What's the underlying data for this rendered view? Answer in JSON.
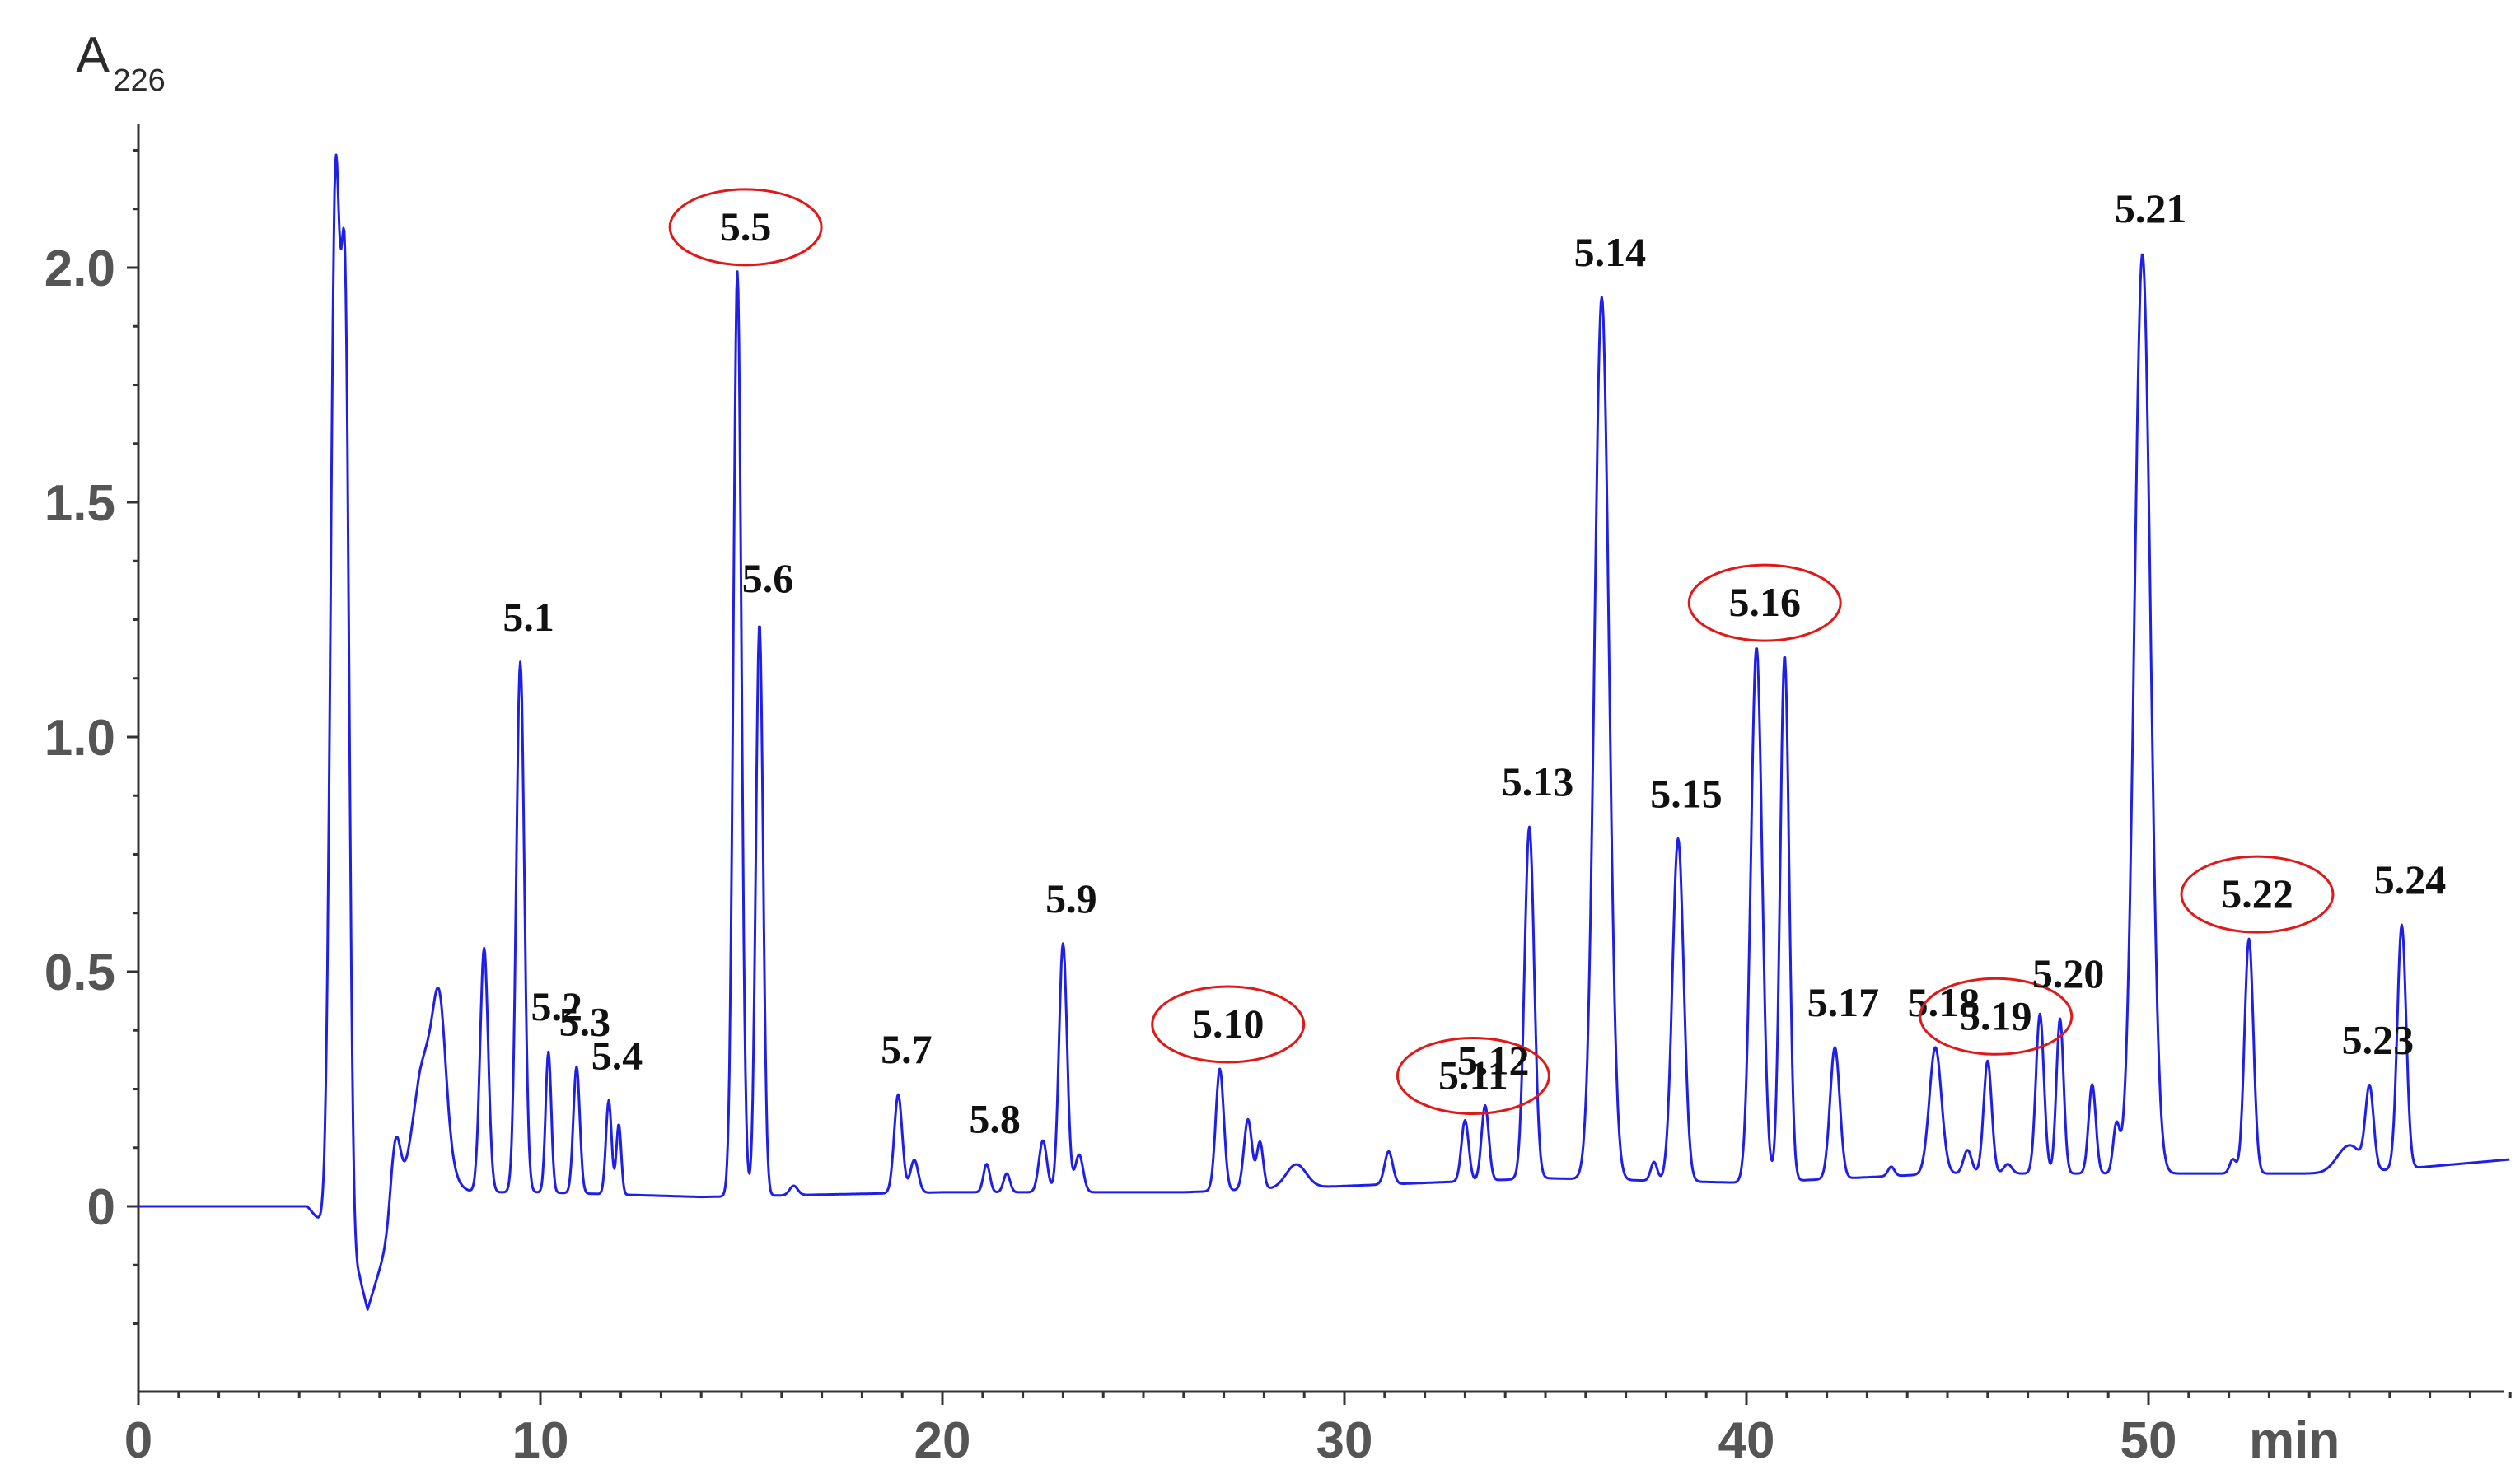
{
  "chart_data": {
    "type": "line",
    "ylabel": "A",
    "ylabel_subscript": "226",
    "xunit": "min",
    "xlim": [
      0,
      59
    ],
    "ylim": [
      -0.35,
      2.4
    ],
    "yticks": [
      0,
      0.5,
      1.0,
      1.5,
      2.0
    ],
    "ytick_labels": [
      "0",
      "0.5",
      "1.0",
      "1.5",
      "2.0"
    ],
    "xticks": [
      0,
      10,
      20,
      30,
      40,
      50
    ],
    "xtick_labels": [
      "0",
      "10",
      "20",
      "30",
      "40",
      "50"
    ],
    "baseline": {
      "points": [
        [
          0,
          0
        ],
        [
          4.2,
          0
        ],
        [
          4.5,
          -0.03
        ],
        [
          5.5,
          -0.15
        ],
        [
          5.7,
          -0.22
        ],
        [
          6.3,
          -0.05
        ],
        [
          7,
          0.05
        ],
        [
          8,
          0.03
        ],
        [
          10,
          0.03
        ],
        [
          14,
          0.02
        ],
        [
          17,
          0.025
        ],
        [
          20,
          0.03
        ],
        [
          26,
          0.03
        ],
        [
          32,
          0.05
        ],
        [
          35,
          0.06
        ],
        [
          40,
          0.05
        ],
        [
          45,
          0.07
        ],
        [
          50,
          0.07
        ],
        [
          55,
          0.07
        ],
        [
          59,
          0.1
        ]
      ]
    },
    "peaks": [
      {
        "x": 4.9,
        "y": 2.22,
        "w": 0.12
      },
      {
        "x": 5.15,
        "y": 1.85,
        "w": 0.1
      },
      {
        "x": 6.4,
        "y": 0.16,
        "w": 0.12
      },
      {
        "x": 7.2,
        "y": 0.28,
        "w": 0.35
      },
      {
        "x": 7.5,
        "y": 0.22,
        "w": 0.15
      },
      {
        "x": 8.6,
        "y": 0.52,
        "w": 0.1
      },
      {
        "x": 9.5,
        "y": 1.13,
        "w": 0.1,
        "label": "5.1"
      },
      {
        "x": 10.2,
        "y": 0.3,
        "w": 0.07,
        "label": "5.2"
      },
      {
        "x": 10.9,
        "y": 0.27,
        "w": 0.08,
        "label": "5.3"
      },
      {
        "x": 11.7,
        "y": 0.2,
        "w": 0.07,
        "label": "5.4"
      },
      {
        "x": 11.95,
        "y": 0.15,
        "w": 0.06
      },
      {
        "x": 14.9,
        "y": 1.97,
        "w": 0.1,
        "label": "5.5",
        "circled": true
      },
      {
        "x": 15.45,
        "y": 1.22,
        "w": 0.09,
        "label": "5.6"
      },
      {
        "x": 16.3,
        "y": 0.02,
        "w": 0.1
      },
      {
        "x": 18.9,
        "y": 0.21,
        "w": 0.1,
        "label": "5.7"
      },
      {
        "x": 19.3,
        "y": 0.07,
        "w": 0.1
      },
      {
        "x": 21.1,
        "y": 0.06,
        "w": 0.08,
        "label": "5.8"
      },
      {
        "x": 21.6,
        "y": 0.04,
        "w": 0.08
      },
      {
        "x": 22.5,
        "y": 0.11,
        "w": 0.1
      },
      {
        "x": 23.0,
        "y": 0.53,
        "w": 0.1,
        "label": "5.9"
      },
      {
        "x": 23.4,
        "y": 0.08,
        "w": 0.1
      },
      {
        "x": 26.9,
        "y": 0.26,
        "w": 0.1,
        "label": "5.10",
        "circled": true
      },
      {
        "x": 27.6,
        "y": 0.15,
        "w": 0.1
      },
      {
        "x": 27.9,
        "y": 0.1,
        "w": 0.08
      },
      {
        "x": 28.8,
        "y": 0.05,
        "w": 0.25
      },
      {
        "x": 31.1,
        "y": 0.07,
        "w": 0.1
      },
      {
        "x": 33.0,
        "y": 0.13,
        "w": 0.09,
        "label": "5.11",
        "circled": true
      },
      {
        "x": 33.5,
        "y": 0.16,
        "w": 0.09,
        "label": "5.12"
      },
      {
        "x": 34.6,
        "y": 0.75,
        "w": 0.12,
        "label": "5.13"
      },
      {
        "x": 36.4,
        "y": 1.88,
        "w": 0.18,
        "label": "5.14"
      },
      {
        "x": 37.7,
        "y": 0.04,
        "w": 0.08
      },
      {
        "x": 38.3,
        "y": 0.73,
        "w": 0.14,
        "label": "5.15"
      },
      {
        "x": 40.25,
        "y": 1.14,
        "w": 0.14,
        "label": "5.16",
        "circled": true
      },
      {
        "x": 40.95,
        "y": 1.12,
        "w": 0.11
      },
      {
        "x": 42.2,
        "y": 0.28,
        "w": 0.12,
        "label": "5.17"
      },
      {
        "x": 43.6,
        "y": 0.02,
        "w": 0.08
      },
      {
        "x": 44.7,
        "y": 0.27,
        "w": 0.15,
        "label": "5.18"
      },
      {
        "x": 45.5,
        "y": 0.05,
        "w": 0.1
      },
      {
        "x": 46.0,
        "y": 0.24,
        "w": 0.1,
        "label": "5.19",
        "circled": true
      },
      {
        "x": 46.5,
        "y": 0.02,
        "w": 0.1
      },
      {
        "x": 47.3,
        "y": 0.34,
        "w": 0.1
      },
      {
        "x": 47.8,
        "y": 0.33,
        "w": 0.09,
        "label": "5.20"
      },
      {
        "x": 48.6,
        "y": 0.19,
        "w": 0.09
      },
      {
        "x": 49.2,
        "y": 0.1,
        "w": 0.08
      },
      {
        "x": 49.85,
        "y": 1.96,
        "w": 0.2,
        "label": "5.21"
      },
      {
        "x": 52.1,
        "y": 0.03,
        "w": 0.08
      },
      {
        "x": 52.5,
        "y": 0.5,
        "w": 0.11,
        "label": "5.22",
        "circled": true
      },
      {
        "x": 55.0,
        "y": 0.06,
        "w": 0.3
      },
      {
        "x": 55.5,
        "y": 0.17,
        "w": 0.1,
        "label": "5.23"
      },
      {
        "x": 56.3,
        "y": 0.52,
        "w": 0.11,
        "label": "5.24"
      }
    ]
  }
}
